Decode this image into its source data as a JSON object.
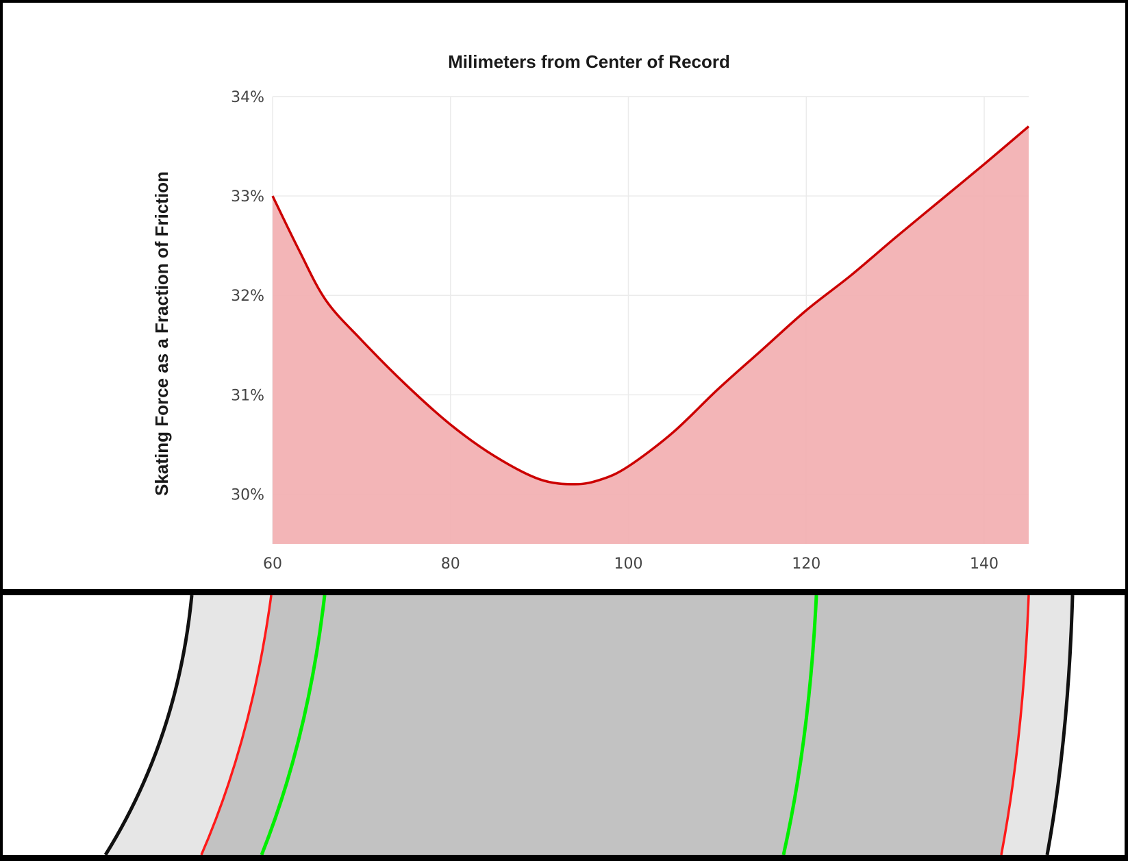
{
  "chart_data": {
    "type": "area",
    "title": "Milimeters from Center of Record",
    "xlabel": "",
    "ylabel": "Skating Force as a Fraction of Friction",
    "xlim": [
      60,
      145
    ],
    "ylim": [
      29.5,
      34
    ],
    "x_ticks": [
      "60",
      "80",
      "100",
      "120",
      "140"
    ],
    "x_tick_values": [
      60,
      80,
      100,
      120,
      140
    ],
    "y_ticks": [
      "30%",
      "31%",
      "32%",
      "33%",
      "34%"
    ],
    "y_tick_values": [
      30,
      31,
      32,
      33,
      34
    ],
    "grid": true,
    "series": [
      {
        "x": [
          60,
          63,
          66,
          70,
          75,
          80,
          85,
          90,
          94,
          97,
          100,
          105,
          110,
          115,
          120,
          125,
          130,
          135,
          140,
          145
        ],
        "values": [
          33.0,
          32.45,
          31.95,
          31.55,
          31.1,
          30.7,
          30.38,
          30.15,
          30.1,
          30.15,
          30.28,
          30.62,
          31.05,
          31.45,
          31.85,
          32.2,
          32.58,
          32.95,
          33.32,
          33.7
        ]
      }
    ],
    "colors": {
      "line": "#cc0000",
      "fill": "#f2b1b3",
      "grid": "#ebebeb"
    }
  },
  "record_diagram": {
    "colors": {
      "outer_band": "#e6e6e6",
      "inner_band": "#c2c2c2",
      "red_groove": "#ff1a1a",
      "green_groove": "#00ee00",
      "edge": "#111111"
    }
  }
}
